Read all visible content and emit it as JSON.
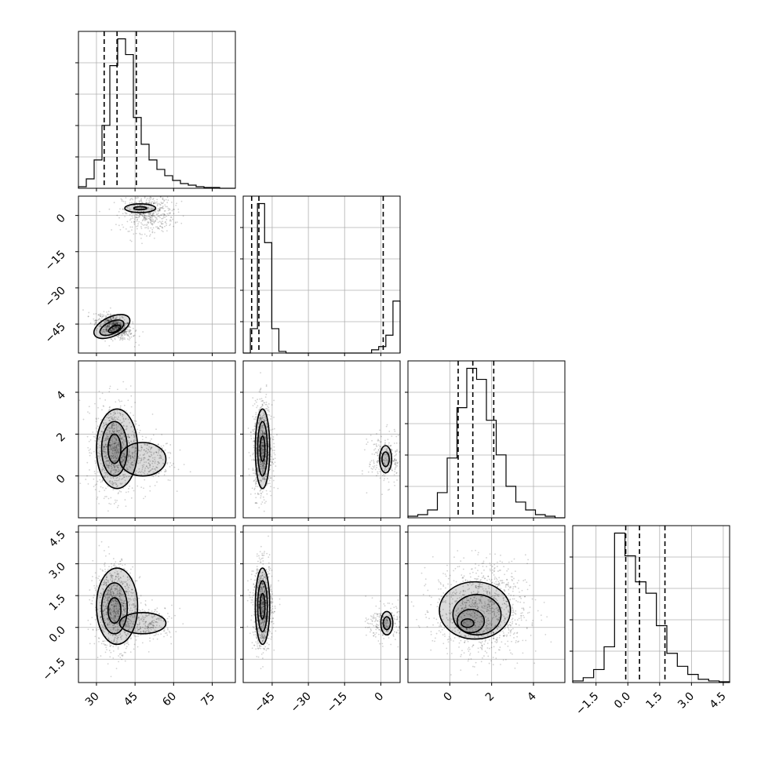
{
  "chart_data": {
    "type": "corner",
    "grid": true,
    "parameters": [
      {
        "range": [
          23,
          84
        ],
        "ticks": [
          "30",
          "45",
          "60",
          "75"
        ],
        "hist_range": [
          23,
          84
        ],
        "hist_counts": [
          1,
          6,
          18,
          40,
          78,
          95,
          85,
          45,
          28,
          18,
          12,
          8,
          5,
          3,
          2,
          1,
          0.5,
          0.5,
          0,
          0
        ],
        "quantiles": [
          33,
          38,
          45.5
        ]
      },
      {
        "range": [
          -57,
          8
        ],
        "ticks": [
          "0",
          "-15",
          "-30",
          "-45"
        ],
        "hist_range": [
          -57,
          8
        ],
        "hist_counts": [
          0,
          15,
          92,
          68,
          15,
          1,
          0,
          0,
          0,
          0,
          0,
          0,
          0,
          0,
          0,
          0,
          0,
          0,
          2,
          4,
          11,
          32
        ],
        "quantiles": [
          -53.5,
          -50.5,
          1
        ]
      },
      {
        "range": [
          -2,
          5.5
        ],
        "ticks": [
          "0",
          "2",
          "4"
        ],
        "x_ticks": [
          "0",
          "2",
          "4"
        ],
        "y_ticks": [
          "0",
          "2",
          "4"
        ],
        "hist_range": [
          -2,
          5.5
        ],
        "hist_counts": [
          1,
          2,
          5,
          16,
          38,
          70,
          95,
          88,
          62,
          40,
          20,
          10,
          5,
          2,
          1,
          0
        ],
        "quantiles": [
          0.4,
          1.1,
          2.1
        ]
      },
      {
        "range": [
          -2.6,
          4.8
        ],
        "ticks": [
          "-1.5",
          "0.0",
          "1.5",
          "3.0",
          "4.5"
        ],
        "hist_range": [
          -2.6,
          4.8
        ],
        "hist_counts": [
          1,
          3,
          8,
          22,
          92,
          78,
          62,
          55,
          35,
          18,
          10,
          5,
          2,
          1,
          0.5
        ],
        "quantiles": [
          -0.1,
          0.55,
          1.75
        ]
      }
    ],
    "scatter_clusters": {
      "1_0": [
        {
          "mx": 37,
          "my": -46,
          "sx": 3.5,
          "sy": 2.5,
          "rho": -0.5,
          "n": 700
        },
        {
          "mx": 50,
          "my": 1,
          "sx": 5,
          "sy": 4,
          "rho": 0,
          "n": 500
        }
      ],
      "2_0": [
        {
          "mx": 37,
          "my": 1.3,
          "sx": 4,
          "sy": 1.1,
          "rho": 0,
          "n": 900
        },
        {
          "mx": 50,
          "my": 0.8,
          "sx": 5,
          "sy": 0.6,
          "rho": 0,
          "n": 250
        }
      ],
      "2_1": [
        {
          "mx": -49,
          "my": 1.3,
          "sx": 2,
          "sy": 1.1,
          "rho": 0,
          "n": 900
        },
        {
          "mx": 2,
          "my": 0.8,
          "sx": 3.5,
          "sy": 0.6,
          "rho": 0,
          "n": 250
        }
      ],
      "3_0": [
        {
          "mx": 37,
          "my": 1,
          "sx": 4,
          "sy": 1,
          "rho": 0,
          "n": 900
        },
        {
          "mx": 50,
          "my": 0.2,
          "sx": 5,
          "sy": 0.4,
          "rho": 0,
          "n": 250
        }
      ],
      "3_1": [
        {
          "mx": -49,
          "my": 1,
          "sx": 2,
          "sy": 1,
          "rho": 0,
          "n": 900
        },
        {
          "mx": 2,
          "my": 0.2,
          "sx": 3.5,
          "sy": 0.4,
          "rho": 0,
          "n": 250
        }
      ],
      "3_2": [
        {
          "mx": 1.5,
          "my": 0.8,
          "sx": 1.1,
          "sy": 1.1,
          "rho": 0,
          "n": 1100
        }
      ]
    },
    "contours": {
      "1_0": [
        {
          "cx": 47,
          "cy": 3,
          "rx": 6,
          "ry": 1.8,
          "rot": 0
        },
        {
          "cx": 47,
          "cy": 3,
          "rx": 2.5,
          "ry": 0.6,
          "rot": 0
        },
        {
          "cx": 36,
          "cy": -46,
          "rx": 7.5,
          "ry": 4,
          "rot": -25
        },
        {
          "cx": 36,
          "cy": -46.5,
          "rx": 5,
          "ry": 2.5,
          "rot": -25
        },
        {
          "cx": 37,
          "cy": -47,
          "rx": 2.5,
          "ry": 1.2,
          "rot": -25
        }
      ],
      "2_0": [
        {
          "cx": 38,
          "cy": 1.3,
          "rx": 8,
          "ry": 1.9,
          "rot": 0
        },
        {
          "cx": 48,
          "cy": 0.8,
          "rx": 9,
          "ry": 0.8,
          "rot": 0
        },
        {
          "cx": 37,
          "cy": 1.3,
          "rx": 5,
          "ry": 1.3,
          "rot": 0
        },
        {
          "cx": 37,
          "cy": 1.3,
          "rx": 2.5,
          "ry": 0.7,
          "rot": 0
        }
      ],
      "2_1": [
        {
          "cx": -49,
          "cy": 1.3,
          "rx": 3,
          "ry": 1.9,
          "rot": 0
        },
        {
          "cx": -49,
          "cy": 1.3,
          "rx": 2,
          "ry": 1.3,
          "rot": 0
        },
        {
          "cx": -49,
          "cy": 1.3,
          "rx": 1,
          "ry": 0.6,
          "rot": 0
        },
        {
          "cx": 2,
          "cy": 0.8,
          "rx": 2.5,
          "ry": 0.65,
          "rot": 0
        },
        {
          "cx": 2,
          "cy": 0.8,
          "rx": 1.5,
          "ry": 0.35,
          "rot": 0
        }
      ],
      "3_0": [
        {
          "cx": 38,
          "cy": 1,
          "rx": 8,
          "ry": 1.8,
          "rot": 0
        },
        {
          "cx": 48,
          "cy": 0.2,
          "rx": 9,
          "ry": 0.5,
          "rot": 0
        },
        {
          "cx": 37,
          "cy": 0.9,
          "rx": 5,
          "ry": 1.2,
          "rot": 0
        },
        {
          "cx": 37,
          "cy": 0.8,
          "rx": 2.5,
          "ry": 0.6,
          "rot": 0
        }
      ],
      "3_1": [
        {
          "cx": -49,
          "cy": 1,
          "rx": 3,
          "ry": 1.8,
          "rot": 0
        },
        {
          "cx": -49,
          "cy": 1,
          "rx": 2,
          "ry": 1.2,
          "rot": 0
        },
        {
          "cx": -49,
          "cy": 1,
          "rx": 1,
          "ry": 0.6,
          "rot": 0
        },
        {
          "cx": 2.5,
          "cy": 0.2,
          "rx": 2.5,
          "ry": 0.55,
          "rot": 0
        },
        {
          "cx": 2.5,
          "cy": 0.2,
          "rx": 1.5,
          "ry": 0.3,
          "rot": 0
        }
      ],
      "3_2": [
        {
          "cx": 1.2,
          "cy": 0.8,
          "rx": 1.7,
          "ry": 1.35,
          "rot": 0
        },
        {
          "cx": 1.3,
          "cy": 0.6,
          "rx": 1.15,
          "ry": 0.95,
          "rot": 0
        },
        {
          "cx": 1.0,
          "cy": 0.3,
          "rx": 0.65,
          "ry": 0.55,
          "rot": 0
        },
        {
          "cx": 0.85,
          "cy": 0.2,
          "rx": 0.3,
          "ry": 0.2,
          "rot": 0
        }
      ]
    }
  }
}
